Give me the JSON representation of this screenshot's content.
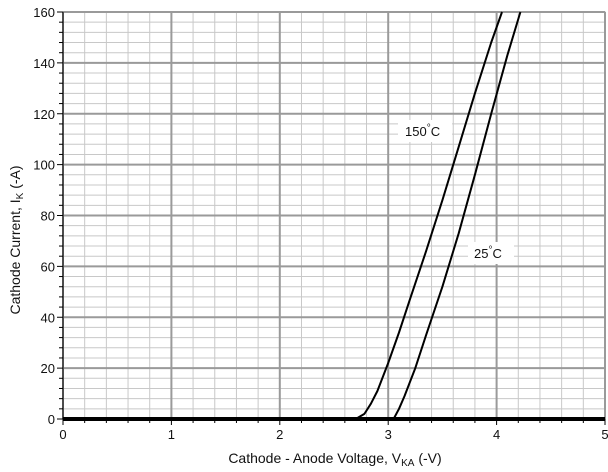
{
  "chart_data": {
    "type": "line",
    "xlabel": {
      "main": "Cathode - Anode Voltage, V",
      "sub": "KA",
      "unit": " (-V)"
    },
    "ylabel": {
      "main": "Cathode Current, I",
      "sub": "K",
      "unit": " (-A)"
    },
    "xlim": [
      0,
      5
    ],
    "ylim": [
      0,
      160
    ],
    "x_ticks": [
      0,
      1,
      2,
      3,
      4,
      5
    ],
    "y_ticks": [
      0,
      20,
      40,
      60,
      80,
      100,
      120,
      140,
      160
    ],
    "x_tick_labels": [
      "0",
      "1",
      "2",
      "3",
      "4",
      "5"
    ],
    "y_tick_labels": [
      "0",
      "20",
      "40",
      "60",
      "80",
      "100",
      "120",
      "140",
      "160"
    ],
    "grid": true,
    "minor_divisions": 5,
    "legend": "none",
    "series": [
      {
        "annotation": "150°C",
        "x": [
          0,
          2.7,
          2.78,
          2.84,
          2.9,
          3.0,
          3.1,
          3.2,
          3.35,
          3.5,
          3.65,
          3.8,
          3.95,
          4.05
        ],
        "y": [
          0,
          0,
          2,
          6,
          11,
          22,
          34,
          47,
          66,
          86,
          107,
          128,
          148,
          160
        ]
      },
      {
        "annotation": "25°C",
        "x": [
          0,
          3.05,
          3.1,
          3.15,
          3.25,
          3.35,
          3.5,
          3.65,
          3.8,
          3.95,
          4.1,
          4.22
        ],
        "y": [
          0,
          0,
          4,
          9,
          20,
          33,
          52,
          73,
          96,
          120,
          143,
          160
        ]
      }
    ],
    "annotations": {
      "series_150": {
        "text": "150",
        "degree": "°",
        "unit": "C"
      },
      "series_25": {
        "text": "25",
        "degree": "°",
        "unit": "C"
      }
    }
  }
}
